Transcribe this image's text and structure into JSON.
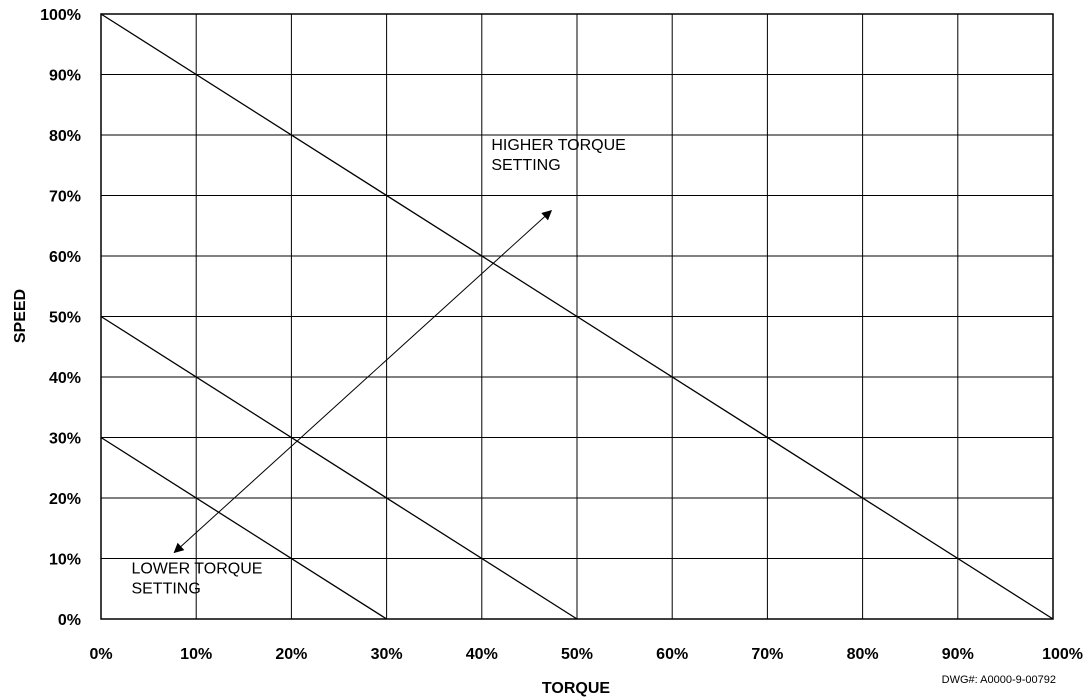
{
  "chart_data": {
    "type": "line",
    "xlabel": "TORQUE",
    "ylabel": "SPEED",
    "xlim": [
      0,
      100
    ],
    "ylim": [
      0,
      100
    ],
    "grid": true,
    "x_ticks": [
      "0%",
      "10%",
      "20%",
      "30%",
      "40%",
      "50%",
      "60%",
      "70%",
      "80%",
      "90%",
      "100%"
    ],
    "y_ticks": [
      "0%",
      "10%",
      "20%",
      "30%",
      "40%",
      "50%",
      "60%",
      "70%",
      "80%",
      "90%",
      "100%"
    ],
    "series": [
      {
        "x": [
          0,
          100
        ],
        "y": [
          100,
          0
        ]
      },
      {
        "x": [
          0,
          50
        ],
        "y": [
          50,
          0
        ]
      },
      {
        "x": [
          0,
          30
        ],
        "y": [
          30,
          0
        ]
      }
    ],
    "annotations": [
      {
        "lines": [
          "HIGHER TORQUE",
          "SETTING"
        ],
        "x": 41,
        "y": 77.5
      },
      {
        "lines": [
          "LOWER TORQUE",
          "SETTING"
        ],
        "x": 3.2,
        "y": 7.5
      }
    ],
    "arrow": {
      "from": [
        7.7,
        11
      ],
      "to": [
        47.3,
        67.5
      ]
    },
    "drawing_number": "DWG#: A0000-9-00792"
  }
}
